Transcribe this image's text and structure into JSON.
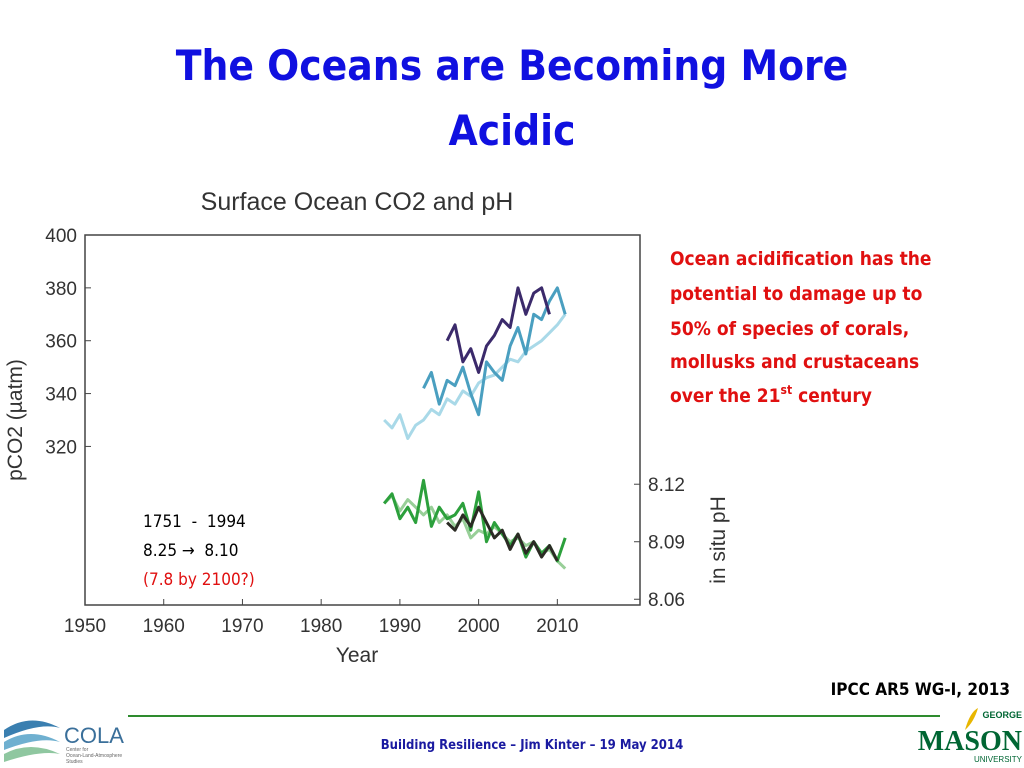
{
  "slide": {
    "title_lines": [
      "The Oceans are Becoming More",
      "Acidic"
    ],
    "side_note": {
      "lines": [
        "Ocean acidification has the",
        "potential to damage up to",
        "50% of species of corals,",
        "mollusks and crustaceans"
      ],
      "last_line": [
        "over the 21",
        "st",
        " century"
      ]
    },
    "box_lines": [
      "1751  -  1994",
      "8.25 →  8.10",
      "(7.8 by 2100?)"
    ],
    "source": "IPCC AR5 WG-I, 2013",
    "footer": "Building Resilience – Jim Kinter – 19 May 2014",
    "logo_left": {
      "name": "COLA",
      "sub": [
        "Center for",
        "Ocean-Land-Atmosphere",
        "Studies"
      ]
    },
    "logo_right": [
      "GEORGE",
      "MASON",
      "UNIVERSITY"
    ]
  },
  "chart_data": {
    "type": "line",
    "title": "Surface Ocean CO2 and pH",
    "xlabel": "Year",
    "ylabel": "pCO2 (µatm)",
    "y2label": "in situ pH",
    "xlim": [
      1950,
      2020.5
    ],
    "xticks": [
      1950,
      1960,
      1970,
      1980,
      1990,
      2000,
      2010
    ],
    "ylim": [
      260,
      400
    ],
    "yticks": [
      320,
      340,
      360,
      380,
      400
    ],
    "y2lim": [
      8.057,
      8.25
    ],
    "y2ticks": [
      {
        "value": 8.06,
        "label": "8.06"
      },
      8.09,
      8.12
    ],
    "grid": false,
    "series": [
      {
        "color": "#a9d9e8",
        "x": [
          1988,
          1989,
          1990,
          1991,
          1992,
          1993,
          1994,
          1995,
          1996,
          1997,
          1998,
          1999,
          2000,
          2001,
          2002,
          2003,
          2004,
          2005,
          2006,
          2007,
          2008,
          2009,
          2010,
          2011
        ],
        "values": [
          330,
          327,
          332,
          323,
          328,
          330,
          334,
          332,
          338,
          336,
          341,
          339,
          344,
          346,
          347,
          350,
          353,
          352,
          356,
          358,
          360,
          363,
          366,
          370
        ]
      },
      {
        "color": "#4a9fc0",
        "x": [
          1993,
          1994,
          1995,
          1996,
          1997,
          1998,
          1999,
          2000,
          2001,
          2002,
          2003,
          2004,
          2005,
          2006,
          2007,
          2008,
          2009,
          2010,
          2011
        ],
        "values": [
          342,
          348,
          336,
          345,
          343,
          350,
          340,
          332,
          352,
          348,
          345,
          358,
          365,
          355,
          370,
          368,
          375,
          380,
          370
        ]
      },
      {
        "color": "#3b2a6b",
        "x": [
          1996,
          1997,
          1998,
          1999,
          2000,
          2001,
          2002,
          2003,
          2004,
          2005,
          2006,
          2007,
          2008,
          2009
        ],
        "values": [
          360,
          366,
          352,
          357,
          348,
          358,
          362,
          368,
          365,
          380,
          370,
          378,
          380,
          370
        ]
      },
      {
        "color": "#98cf98",
        "axis": "y2",
        "x": [
          1988,
          1989,
          1990,
          1991,
          1992,
          1993,
          1994,
          1995,
          1996,
          1997,
          1998,
          1999,
          2000,
          2001,
          2002,
          2003,
          2004,
          2005,
          2006,
          2007,
          2008,
          2009,
          2010,
          2011
        ],
        "values": [
          8.11,
          8.114,
          8.106,
          8.112,
          8.108,
          8.104,
          8.108,
          8.1,
          8.104,
          8.098,
          8.102,
          8.092,
          8.096,
          8.094,
          8.098,
          8.094,
          8.09,
          8.092,
          8.088,
          8.09,
          8.084,
          8.086,
          8.08,
          8.076
        ]
      },
      {
        "color": "#2ca03c",
        "axis": "y2",
        "x": [
          1988,
          1989,
          1990,
          1991,
          1992,
          1993,
          1994,
          1995,
          1996,
          1997,
          1998,
          1999,
          2000,
          2001,
          2002,
          2003,
          2004,
          2005,
          2006,
          2007,
          2008,
          2009,
          2010,
          2011
        ],
        "values": [
          8.11,
          8.115,
          8.102,
          8.108,
          8.1,
          8.122,
          8.098,
          8.108,
          8.102,
          8.104,
          8.11,
          8.096,
          8.116,
          8.09,
          8.1,
          8.094,
          8.088,
          8.094,
          8.082,
          8.09,
          8.084,
          8.088,
          8.08,
          8.092
        ]
      },
      {
        "color": "#2b2b24",
        "axis": "y2",
        "x": [
          1996,
          1997,
          1998,
          1999,
          2000,
          2001,
          2002,
          2003,
          2004,
          2005,
          2006,
          2007,
          2008,
          2009,
          2010
        ],
        "values": [
          8.1,
          8.096,
          8.104,
          8.098,
          8.108,
          8.1,
          8.092,
          8.096,
          8.086,
          8.094,
          8.084,
          8.09,
          8.082,
          8.088,
          8.08
        ]
      }
    ]
  }
}
